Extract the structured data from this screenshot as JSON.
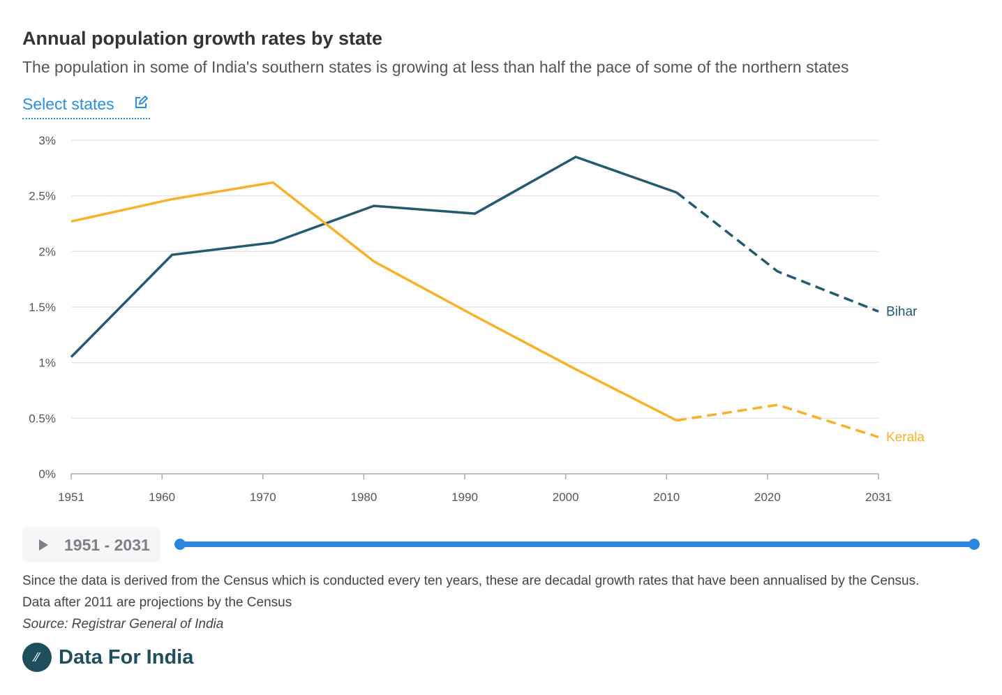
{
  "header": {
    "title": "Annual population growth rates by state",
    "subtitle": "The population in some of India's southern states is growing at less than half the pace of some of the northern states",
    "select_label": "Select states"
  },
  "chart_data": {
    "type": "line",
    "title": "Annual population growth rates by state",
    "x": [
      1951,
      1961,
      1971,
      1981,
      1991,
      2001,
      2011,
      2021,
      2031
    ],
    "x_tick_labels": [
      "1951",
      "1960",
      "1970",
      "1980",
      "1990",
      "2000",
      "2010",
      "2020",
      "2031"
    ],
    "x_tick_values": [
      1951,
      1960,
      1970,
      1980,
      1990,
      2000,
      2010,
      2020,
      2031
    ],
    "y_tick_labels": [
      "0%",
      "0.5%",
      "1%",
      "1.5%",
      "2%",
      "2.5%",
      "3%"
    ],
    "y_tick_values": [
      0,
      0.5,
      1,
      1.5,
      2,
      2.5,
      3
    ],
    "ylim": [
      0,
      3
    ],
    "xlim": [
      1951,
      2031
    ],
    "grid": true,
    "projection_from": 2011,
    "series": [
      {
        "name": "Bihar",
        "color": "#235a6e",
        "values": [
          1.05,
          1.97,
          2.08,
          2.41,
          2.34,
          2.85,
          2.53,
          1.82,
          1.46
        ]
      },
      {
        "name": "Kerala",
        "color": "#f7b12b",
        "values": [
          2.27,
          2.47,
          2.62,
          1.91,
          1.42,
          0.94,
          0.48,
          0.62,
          0.33
        ]
      }
    ]
  },
  "player": {
    "range": "1951 - 2031",
    "icon": "play-icon",
    "range_start": 1951,
    "range_end": 2031
  },
  "footer": {
    "note1": "Since the data is derived from the Census which is conducted every ten years, these are decadal growth rates that have been annualised by the Census.",
    "note2": "Data after 2011 are projections by the Census",
    "source": "Source: Registrar General of India",
    "brand": "Data For India"
  }
}
